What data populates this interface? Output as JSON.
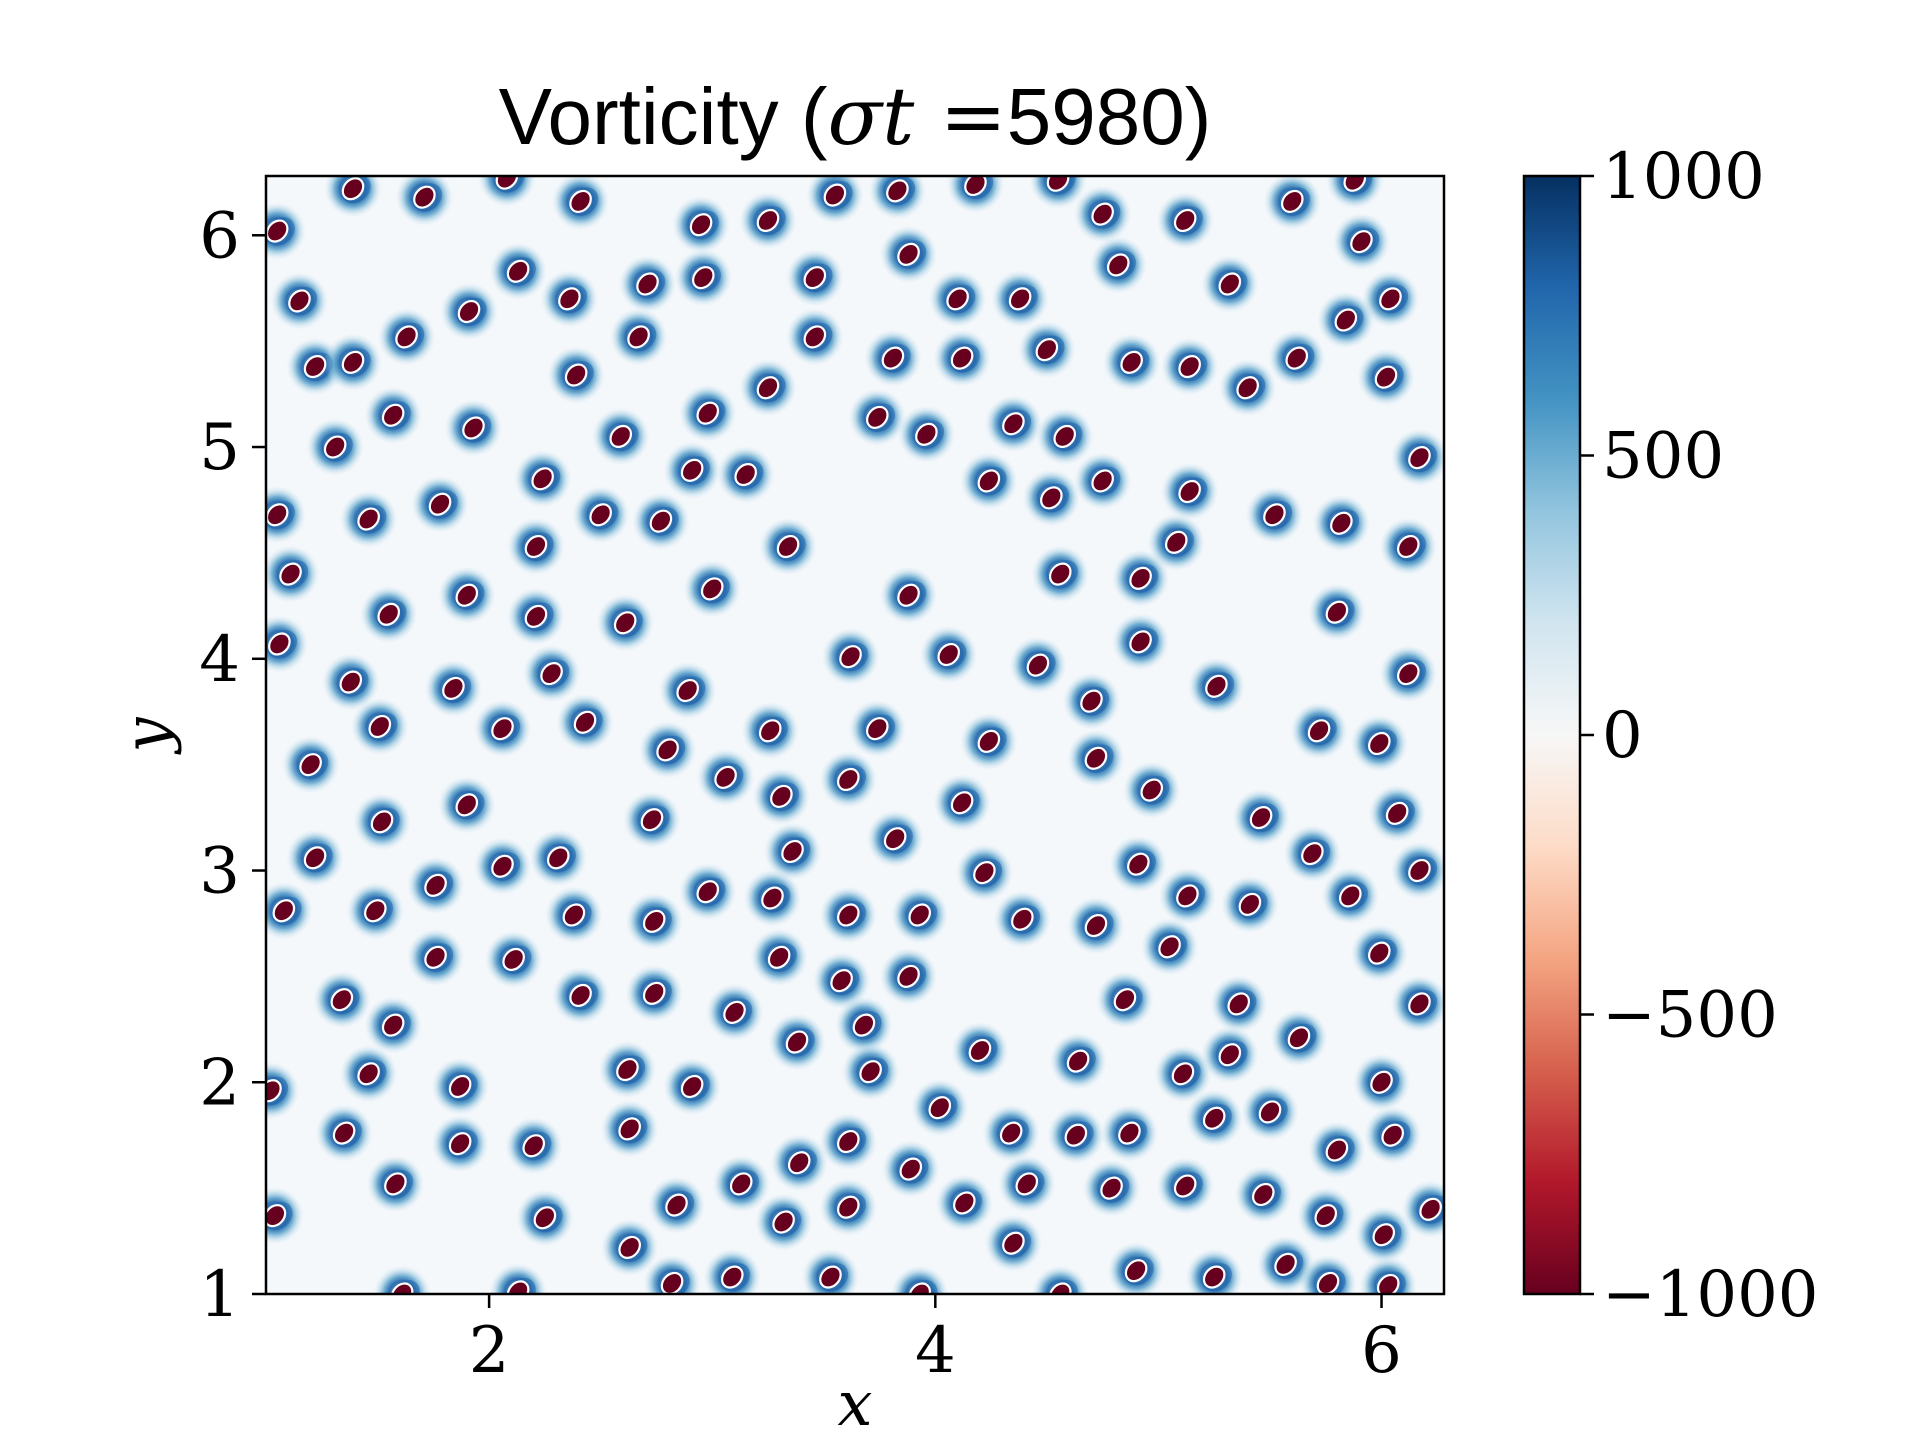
{
  "chart_data": {
    "type": "heatmap",
    "title_main": "Vorticity (",
    "title_sym": "σt",
    "title_eq": " =",
    "title_value": "5980",
    "title_close": ")",
    "xlabel": "x",
    "ylabel": "y",
    "xlim": [
      1.0,
      6.28
    ],
    "ylim": [
      1.0,
      6.28
    ],
    "xticks": [
      2,
      4,
      6
    ],
    "xtick_labels": [
      "2",
      "4",
      "6"
    ],
    "yticks": [
      1,
      2,
      3,
      4,
      5,
      6
    ],
    "ytick_labels": [
      "1",
      "2",
      "3",
      "4",
      "5",
      "6"
    ],
    "colorbar": {
      "label": "",
      "range": [
        -1000,
        1000
      ],
      "ticks": [
        1000,
        500,
        0,
        -500,
        -1000
      ],
      "tick_labels": [
        "1000",
        "500",
        "0",
        "−500",
        "−1000"
      ],
      "colormap": "RdBu",
      "colors": [
        "#67001f",
        "#b2182b",
        "#d6604d",
        "#f4a582",
        "#fddbc7",
        "#f7f7f7",
        "#d1e5f0",
        "#92c5de",
        "#4393c3",
        "#2166ac",
        "#053061"
      ]
    },
    "vortices": [
      [
        1.05,
        6.02
      ],
      [
        1.39,
        6.22
      ],
      [
        1.71,
        6.18
      ],
      [
        2.08,
        6.27
      ],
      [
        2.41,
        6.16
      ],
      [
        2.95,
        6.05
      ],
      [
        3.25,
        6.07
      ],
      [
        3.55,
        6.19
      ],
      [
        3.83,
        6.21
      ],
      [
        4.18,
        6.24
      ],
      [
        4.55,
        6.26
      ],
      [
        4.75,
        6.1
      ],
      [
        5.12,
        6.07
      ],
      [
        5.6,
        6.16
      ],
      [
        5.88,
        6.26
      ],
      [
        1.15,
        5.69
      ],
      [
        1.22,
        5.38
      ],
      [
        1.39,
        5.4
      ],
      [
        1.63,
        5.52
      ],
      [
        1.91,
        5.64
      ],
      [
        2.13,
        5.83
      ],
      [
        2.36,
        5.7
      ],
      [
        2.67,
        5.52
      ],
      [
        2.71,
        5.77
      ],
      [
        2.96,
        5.8
      ],
      [
        3.46,
        5.8
      ],
      [
        3.46,
        5.52
      ],
      [
        3.88,
        5.91
      ],
      [
        4.1,
        5.7
      ],
      [
        4.38,
        5.7
      ],
      [
        4.5,
        5.46
      ],
      [
        4.82,
        5.86
      ],
      [
        5.32,
        5.77
      ],
      [
        5.91,
        5.97
      ],
      [
        6.04,
        5.7
      ],
      [
        5.84,
        5.6
      ],
      [
        6.02,
        5.33
      ],
      [
        1.31,
        5.0
      ],
      [
        1.57,
        5.15
      ],
      [
        1.93,
        5.09
      ],
      [
        2.39,
        5.34
      ],
      [
        2.59,
        5.05
      ],
      [
        2.98,
        5.16
      ],
      [
        3.25,
        5.28
      ],
      [
        3.81,
        5.42
      ],
      [
        4.12,
        5.42
      ],
      [
        3.74,
        5.14
      ],
      [
        3.96,
        5.06
      ],
      [
        4.35,
        5.11
      ],
      [
        4.58,
        5.05
      ],
      [
        4.88,
        5.4
      ],
      [
        5.14,
        5.38
      ],
      [
        5.4,
        5.28
      ],
      [
        5.62,
        5.42
      ],
      [
        6.17,
        4.95
      ],
      [
        1.05,
        4.68
      ],
      [
        1.46,
        4.66
      ],
      [
        1.78,
        4.73
      ],
      [
        2.24,
        4.85
      ],
      [
        2.5,
        4.68
      ],
      [
        2.77,
        4.65
      ],
      [
        2.91,
        4.89
      ],
      [
        3.15,
        4.87
      ],
      [
        3.34,
        4.53
      ],
      [
        4.24,
        4.84
      ],
      [
        4.52,
        4.76
      ],
      [
        4.75,
        4.84
      ],
      [
        5.14,
        4.79
      ],
      [
        5.52,
        4.68
      ],
      [
        5.82,
        4.64
      ],
      [
        6.12,
        4.53
      ],
      [
        1.11,
        4.4
      ],
      [
        1.55,
        4.21
      ],
      [
        1.9,
        4.3
      ],
      [
        2.21,
        4.53
      ],
      [
        2.21,
        4.2
      ],
      [
        2.61,
        4.17
      ],
      [
        3.0,
        4.33
      ],
      [
        3.88,
        4.3
      ],
      [
        4.56,
        4.4
      ],
      [
        4.92,
        4.38
      ],
      [
        5.08,
        4.55
      ],
      [
        5.8,
        4.22
      ],
      [
        1.06,
        4.07
      ],
      [
        1.38,
        3.89
      ],
      [
        1.84,
        3.86
      ],
      [
        2.28,
        3.93
      ],
      [
        2.43,
        3.7
      ],
      [
        2.89,
        3.85
      ],
      [
        3.62,
        4.01
      ],
      [
        4.06,
        4.02
      ],
      [
        4.46,
        3.97
      ],
      [
        4.7,
        3.8
      ],
      [
        4.92,
        4.08
      ],
      [
        5.26,
        3.87
      ],
      [
        6.12,
        3.93
      ],
      [
        1.2,
        3.5
      ],
      [
        1.51,
        3.68
      ],
      [
        2.06,
        3.67
      ],
      [
        2.8,
        3.57
      ],
      [
        3.06,
        3.44
      ],
      [
        3.26,
        3.66
      ],
      [
        3.31,
        3.35
      ],
      [
        3.61,
        3.43
      ],
      [
        3.74,
        3.67
      ],
      [
        4.24,
        3.61
      ],
      [
        4.72,
        3.53
      ],
      [
        4.97,
        3.38
      ],
      [
        5.72,
        3.66
      ],
      [
        5.99,
        3.6
      ],
      [
        1.52,
        3.23
      ],
      [
        1.9,
        3.31
      ],
      [
        2.73,
        3.24
      ],
      [
        3.36,
        3.09
      ],
      [
        3.82,
        3.15
      ],
      [
        4.12,
        3.32
      ],
      [
        4.22,
        2.99
      ],
      [
        5.46,
        3.25
      ],
      [
        5.69,
        3.08
      ],
      [
        6.07,
        3.27
      ],
      [
        6.17,
        3.0
      ],
      [
        1.22,
        3.06
      ],
      [
        1.08,
        2.81
      ],
      [
        1.49,
        2.81
      ],
      [
        1.76,
        2.93
      ],
      [
        2.06,
        3.02
      ],
      [
        2.31,
        3.06
      ],
      [
        2.38,
        2.79
      ],
      [
        2.74,
        2.76
      ],
      [
        2.98,
        2.9
      ],
      [
        3.27,
        2.87
      ],
      [
        3.61,
        2.79
      ],
      [
        3.93,
        2.79
      ],
      [
        4.39,
        2.77
      ],
      [
        4.72,
        2.74
      ],
      [
        4.91,
        3.03
      ],
      [
        5.13,
        2.88
      ],
      [
        5.41,
        2.84
      ],
      [
        5.86,
        2.88
      ],
      [
        1.76,
        2.59
      ],
      [
        2.11,
        2.58
      ],
      [
        2.41,
        2.41
      ],
      [
        2.74,
        2.42
      ],
      [
        3.1,
        2.33
      ],
      [
        3.3,
        2.59
      ],
      [
        3.58,
        2.48
      ],
      [
        3.68,
        2.27
      ],
      [
        3.88,
        2.5
      ],
      [
        4.85,
        2.39
      ],
      [
        5.05,
        2.64
      ],
      [
        5.36,
        2.37
      ],
      [
        5.99,
        2.61
      ],
      [
        6.17,
        2.37
      ],
      [
        1.34,
        2.39
      ],
      [
        1.57,
        2.27
      ],
      [
        1.46,
        2.04
      ],
      [
        1.87,
        1.98
      ],
      [
        2.62,
        2.06
      ],
      [
        2.91,
        1.98
      ],
      [
        3.38,
        2.19
      ],
      [
        3.71,
        2.05
      ],
      [
        4.2,
        2.15
      ],
      [
        4.64,
        2.1
      ],
      [
        5.11,
        2.04
      ],
      [
        5.32,
        2.13
      ],
      [
        5.63,
        2.21
      ],
      [
        6.0,
        2.0
      ],
      [
        1.02,
        1.96
      ],
      [
        1.35,
        1.76
      ],
      [
        1.87,
        1.71
      ],
      [
        2.2,
        1.7
      ],
      [
        2.63,
        1.78
      ],
      [
        3.39,
        1.62
      ],
      [
        3.61,
        1.72
      ],
      [
        4.02,
        1.88
      ],
      [
        4.34,
        1.76
      ],
      [
        4.63,
        1.75
      ],
      [
        4.87,
        1.76
      ],
      [
        5.25,
        1.83
      ],
      [
        5.5,
        1.86
      ],
      [
        5.8,
        1.68
      ],
      [
        6.05,
        1.75
      ],
      [
        1.04,
        1.37
      ],
      [
        1.58,
        1.52
      ],
      [
        2.25,
        1.36
      ],
      [
        2.63,
        1.22
      ],
      [
        2.84,
        1.42
      ],
      [
        3.13,
        1.52
      ],
      [
        3.32,
        1.34
      ],
      [
        3.61,
        1.41
      ],
      [
        3.89,
        1.59
      ],
      [
        4.13,
        1.43
      ],
      [
        4.41,
        1.52
      ],
      [
        4.79,
        1.5
      ],
      [
        5.12,
        1.51
      ],
      [
        5.47,
        1.47
      ],
      [
        5.75,
        1.37
      ],
      [
        6.01,
        1.28
      ],
      [
        1.61,
        1.0
      ],
      [
        2.13,
        1.01
      ],
      [
        2.82,
        1.05
      ],
      [
        3.09,
        1.08
      ],
      [
        3.53,
        1.08
      ],
      [
        3.93,
        1.0
      ],
      [
        4.35,
        1.24
      ],
      [
        4.56,
        1.0
      ],
      [
        4.9,
        1.11
      ],
      [
        5.25,
        1.08
      ],
      [
        5.57,
        1.14
      ],
      [
        5.76,
        1.05
      ],
      [
        6.03,
        1.04
      ],
      [
        6.22,
        1.4
      ]
    ]
  }
}
